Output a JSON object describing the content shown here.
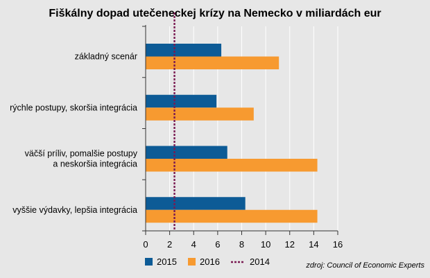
{
  "chart_data": {
    "type": "bar",
    "orientation": "horizontal",
    "title": "Fiškálny dopad utečeneckej krízy na Nemecko v miliardách eur",
    "categories": [
      [
        "základný scenár"
      ],
      [
        "rýchle postupy, skoršia integrácia"
      ],
      [
        "väčší príliv, pomalšie postupy",
        "a neskoršia integrácia"
      ],
      [
        "vyššie výdavky, lepšia integrácia"
      ]
    ],
    "series": [
      {
        "name": "2015",
        "color": "#0d5b96",
        "values": [
          6.3,
          5.9,
          6.8,
          8.3
        ]
      },
      {
        "name": "2016",
        "color": "#f79a30",
        "values": [
          11.1,
          9.0,
          14.3,
          14.3
        ]
      }
    ],
    "reference_line": {
      "name": "2014",
      "value": 2.4,
      "color": "#7a1a52",
      "style": "dotted"
    },
    "xlim": [
      0,
      16
    ],
    "xticks": [
      0,
      2,
      4,
      6,
      8,
      10,
      12,
      14,
      16
    ],
    "grid": true,
    "legend_position": "bottom-left",
    "source": "zdroj: Council of Economic Experts"
  }
}
